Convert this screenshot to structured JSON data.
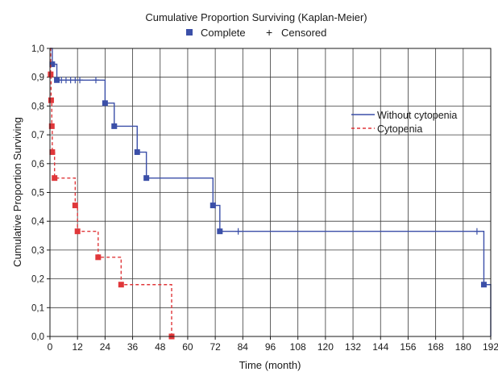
{
  "chart_data": {
    "type": "line",
    "title": "Cumulative Proportion Surviving (Kaplan-Meier)",
    "marker_legend": [
      {
        "label": "Complete",
        "marker": "square"
      },
      {
        "label": "Censored",
        "marker": "plus"
      }
    ],
    "xlabel": "Time (month)",
    "ylabel": "Cumulative Proportion Surviving",
    "xlim": [
      0,
      192
    ],
    "ylim": [
      0,
      1
    ],
    "x_ticks": [
      "0",
      "12",
      "24",
      "36",
      "48",
      "60",
      "72",
      "84",
      "96",
      "108",
      "120",
      "132",
      "144",
      "156",
      "168",
      "180",
      "192"
    ],
    "x_tick_values": [
      0,
      12,
      24,
      36,
      48,
      60,
      72,
      84,
      96,
      108,
      120,
      132,
      144,
      156,
      168,
      180,
      192
    ],
    "y_ticks": [
      "0,0",
      "0,1",
      "0,2",
      "0,3",
      "0,4",
      "0,5",
      "0,6",
      "0,7",
      "0,8",
      "0,9",
      "1,0"
    ],
    "y_tick_values": [
      0,
      0.1,
      0.2,
      0.3,
      0.4,
      0.5,
      0.6,
      0.7,
      0.8,
      0.9,
      1.0
    ],
    "grid": true,
    "legend_position": "right",
    "series": [
      {
        "name": "Without cytopenia",
        "color": "#3b4fa8",
        "line_style": "solid",
        "steps": [
          [
            0,
            1.0
          ],
          [
            1,
            0.945
          ],
          [
            3,
            0.89
          ],
          [
            24,
            0.81
          ],
          [
            28,
            0.73
          ],
          [
            38,
            0.64
          ],
          [
            42,
            0.55
          ],
          [
            71,
            0.455
          ],
          [
            74,
            0.365
          ],
          [
            189,
            0.18
          ],
          [
            192,
            0.0
          ]
        ],
        "complete_events": [
          [
            1,
            0.945
          ],
          [
            3,
            0.89
          ],
          [
            24,
            0.81
          ],
          [
            28,
            0.73
          ],
          [
            38,
            0.64
          ],
          [
            42,
            0.55
          ],
          [
            71,
            0.455
          ],
          [
            74,
            0.365
          ],
          [
            189,
            0.18
          ]
        ],
        "censored": [
          [
            5,
            0.89
          ],
          [
            7,
            0.89
          ],
          [
            9,
            0.89
          ],
          [
            11,
            0.89
          ],
          [
            13,
            0.89
          ],
          [
            20,
            0.89
          ],
          [
            72,
            0.455
          ],
          [
            82,
            0.365
          ],
          [
            186,
            0.365
          ]
        ]
      },
      {
        "name": "Cytopenia",
        "color": "#e0373a",
        "line_style": "dashed",
        "steps": [
          [
            0,
            1.0
          ],
          [
            0.3,
            0.91
          ],
          [
            0.5,
            0.82
          ],
          [
            0.8,
            0.73
          ],
          [
            1,
            0.64
          ],
          [
            2,
            0.55
          ],
          [
            11,
            0.455
          ],
          [
            12,
            0.365
          ],
          [
            21,
            0.275
          ],
          [
            31,
            0.18
          ],
          [
            53,
            0.0
          ]
        ],
        "complete_events": [
          [
            0.3,
            0.91
          ],
          [
            0.5,
            0.82
          ],
          [
            0.8,
            0.73
          ],
          [
            1,
            0.64
          ],
          [
            2,
            0.55
          ],
          [
            11,
            0.455
          ],
          [
            12,
            0.365
          ],
          [
            21,
            0.275
          ],
          [
            31,
            0.18
          ],
          [
            53,
            0.0
          ]
        ],
        "censored": []
      }
    ]
  }
}
